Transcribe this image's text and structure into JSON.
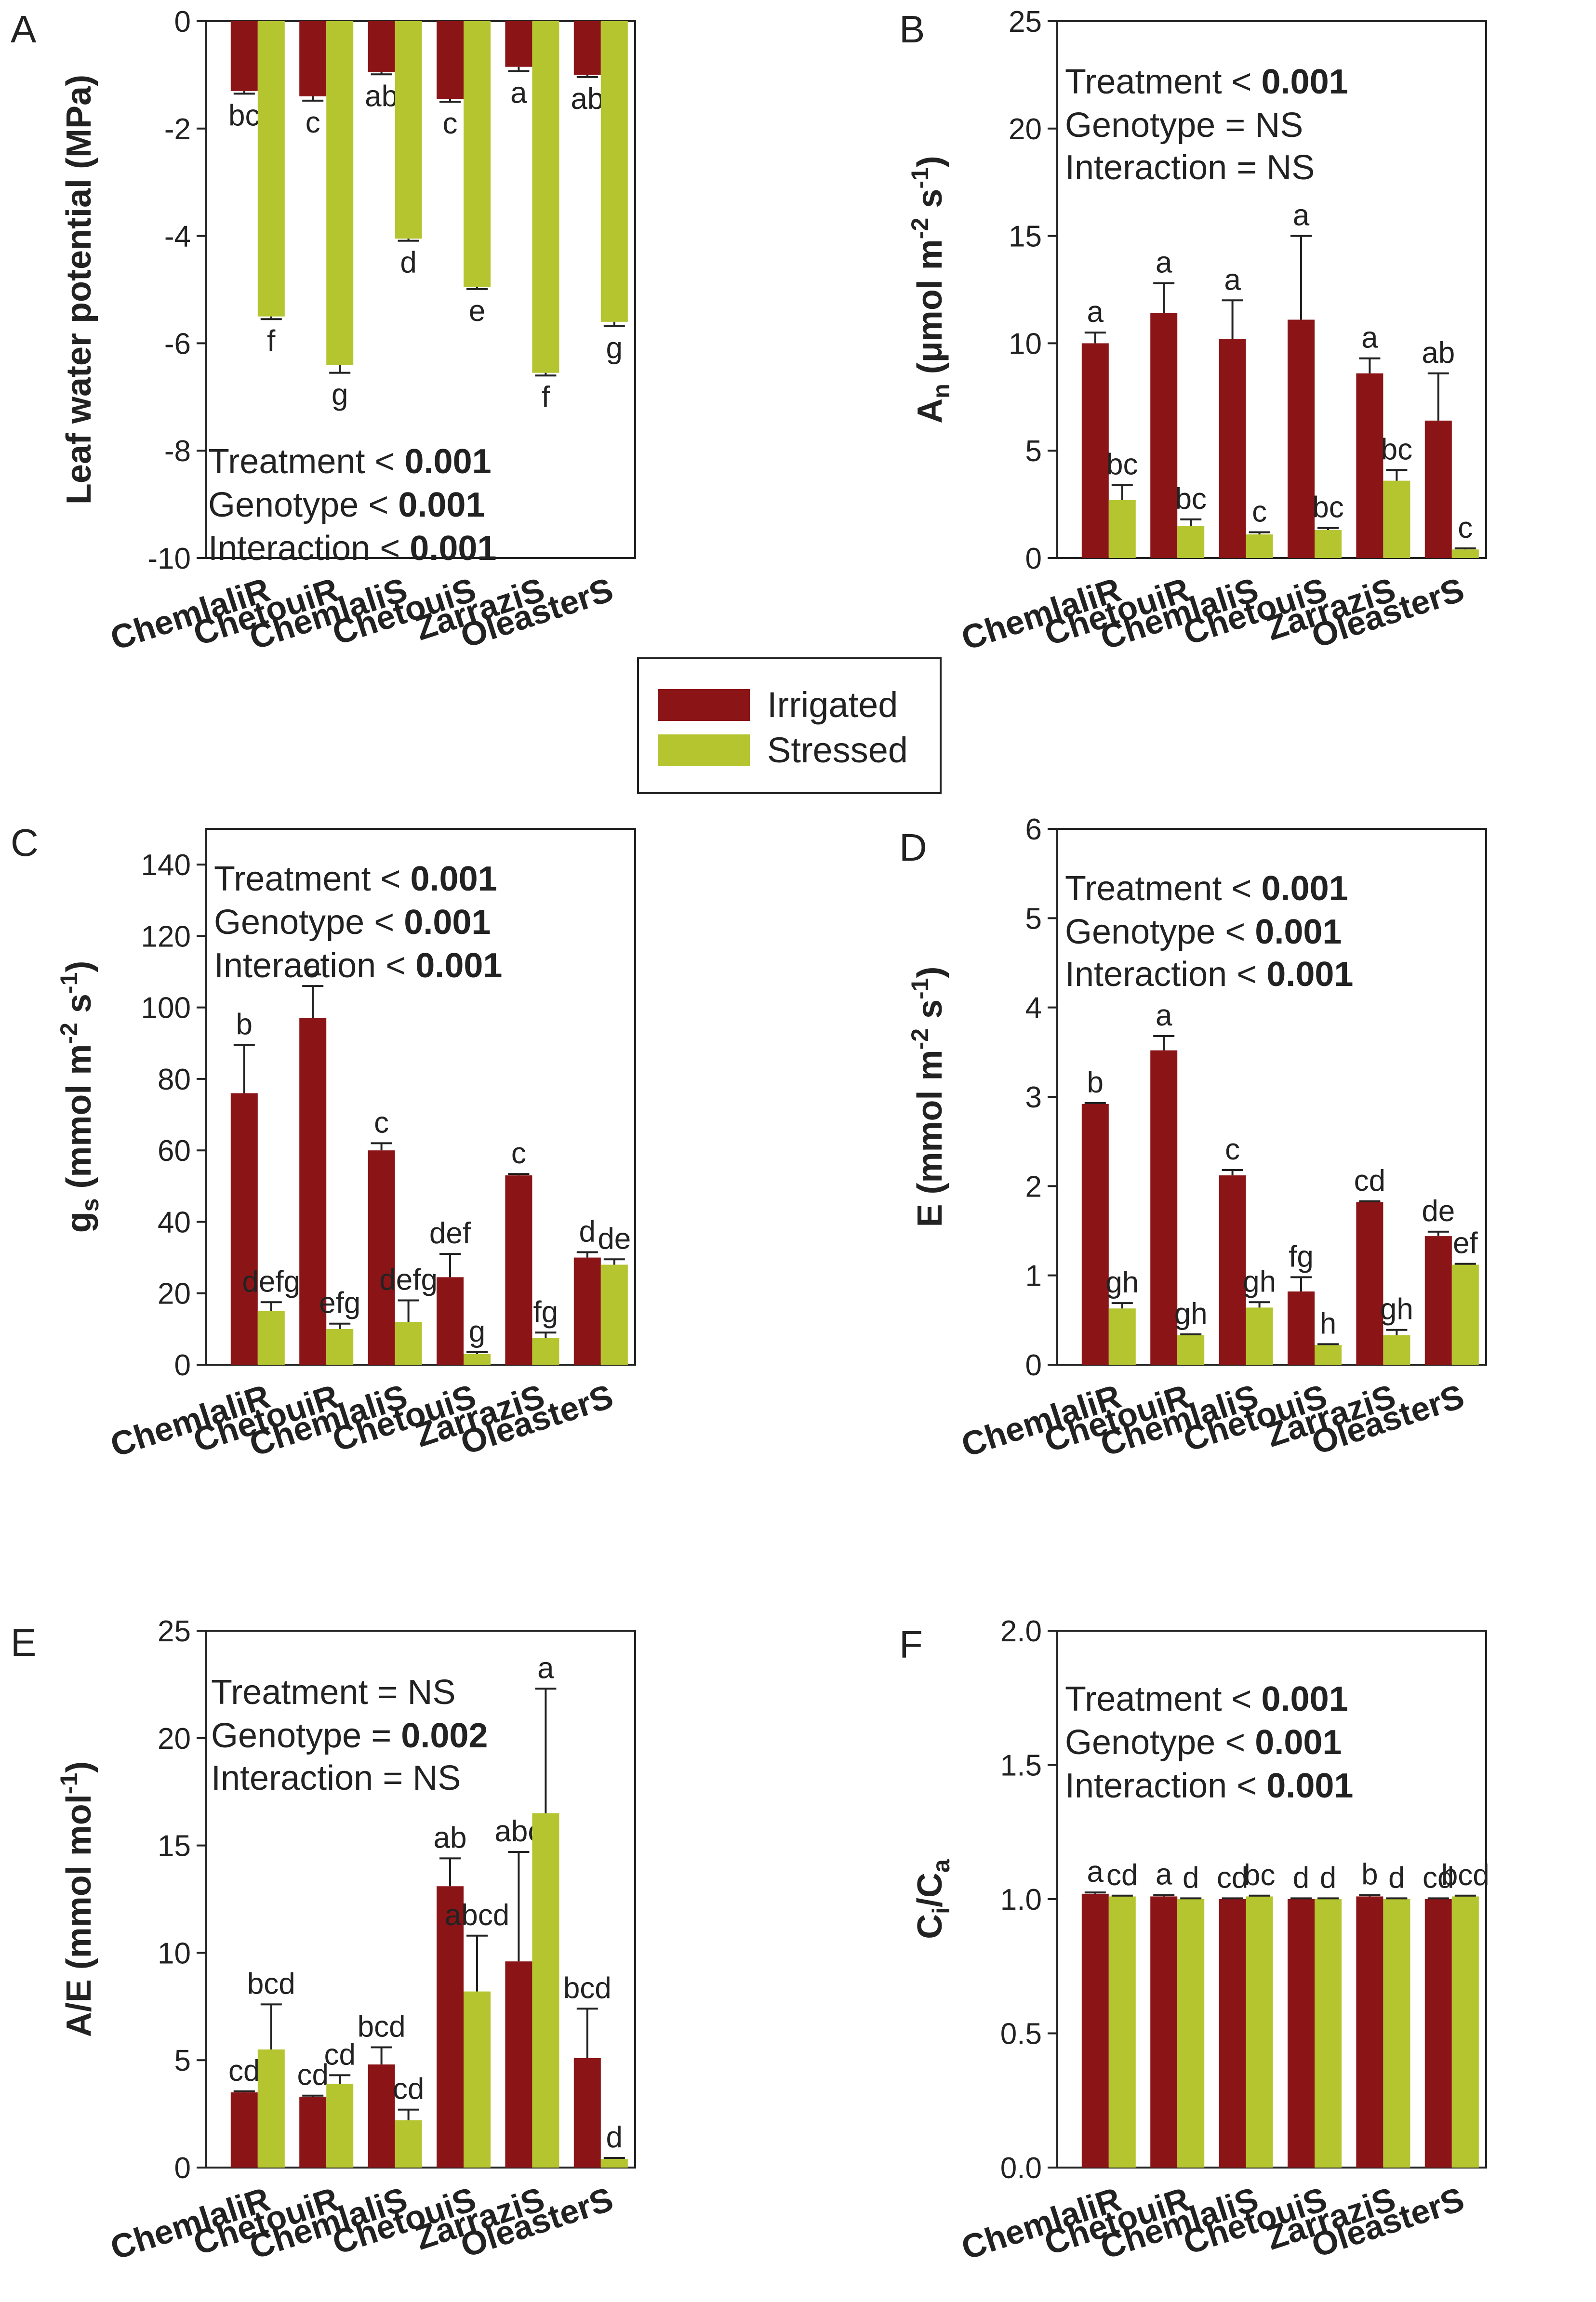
{
  "legend": {
    "irrigated_label": "Irrigated",
    "stressed_label": "Stressed",
    "irrigated_color": "#8b1416",
    "stressed_color": "#b5c530"
  },
  "chart_data": [
    {
      "panel": "A",
      "type": "bar",
      "ylabel": "Leaf water potential (MPa)",
      "ylim": [
        -10,
        0
      ],
      "yticks": [
        0,
        -2,
        -4,
        -6,
        -8,
        -10
      ],
      "yticklabels": [
        "0",
        "-2",
        "-4",
        "-6",
        "-8",
        "-10"
      ],
      "categories": [
        "ChemlaliR",
        "ChetouiR",
        "ChemlaliS",
        "ChetouiS",
        "ZarraziS",
        "OleasterS"
      ],
      "series": [
        {
          "name": "Irrigated",
          "values": [
            -1.3,
            -1.4,
            -0.95,
            -1.45,
            -0.85,
            -1.0
          ],
          "errors": [
            0.05,
            0.08,
            0.04,
            0.05,
            0.08,
            0.04
          ],
          "letters": [
            "bc",
            "c",
            "ab",
            "c",
            "a",
            "ab"
          ]
        },
        {
          "name": "Stressed",
          "values": [
            -5.5,
            -6.4,
            -4.05,
            -4.95,
            -6.55,
            -5.6
          ],
          "errors": [
            0.05,
            0.15,
            0.04,
            0.04,
            0.05,
            0.08
          ],
          "letters": [
            "f",
            "g",
            "d",
            "e",
            "f",
            "g"
          ]
        }
      ],
      "stats": [
        {
          "pre": "Treatment < ",
          "val": "0.001",
          "bold": true
        },
        {
          "pre": "Genotype < ",
          "val": "0.001",
          "bold": true
        },
        {
          "pre": "Interaction < ",
          "val": "0.001",
          "bold": true
        }
      ]
    },
    {
      "panel": "B",
      "type": "bar",
      "ylabel_main": "A",
      "ylabel_sub": "n",
      "ylabel_rest": " (μmol m",
      "ylabel_sup1": "-2",
      "ylabel_mid": " s",
      "ylabel_sup2": "-1",
      "ylabel_end": ")",
      "ylim": [
        0,
        25
      ],
      "yticks": [
        0,
        5,
        10,
        15,
        20,
        25
      ],
      "yticklabels": [
        "0",
        "5",
        "10",
        "15",
        "20",
        "25"
      ],
      "categories": [
        "ChemlaliR",
        "ChetouiR",
        "ChemlaliS",
        "ChetouiS",
        "ZarraziS",
        "OleasterS"
      ],
      "series": [
        {
          "name": "Irrigated",
          "values": [
            10.0,
            11.4,
            10.2,
            11.1,
            8.6,
            6.4
          ],
          "errors": [
            0.5,
            1.4,
            1.8,
            3.9,
            0.7,
            2.2
          ],
          "letters": [
            "a",
            "a",
            "a",
            "a",
            "a",
            "ab"
          ]
        },
        {
          "name": "Stressed",
          "values": [
            2.7,
            1.5,
            1.1,
            1.3,
            3.6,
            0.4
          ],
          "errors": [
            0.7,
            0.3,
            0.1,
            0.1,
            0.5,
            0.05
          ],
          "letters": [
            "bc",
            "bc",
            "c",
            "bc",
            "bc",
            "c"
          ]
        }
      ],
      "stats": [
        {
          "pre": "Treatment < ",
          "val": "0.001",
          "bold": true
        },
        {
          "pre": "Genotype = ",
          "val": "NS",
          "bold": false
        },
        {
          "pre": "Interaction = ",
          "val": "NS",
          "bold": false
        }
      ]
    },
    {
      "panel": "C",
      "type": "bar",
      "ylabel_main": "g",
      "ylabel_sub": "s",
      "ylabel_rest": " (mmol m",
      "ylabel_sup1": "-2",
      "ylabel_mid": " s",
      "ylabel_sup2": "-1",
      "ylabel_end": ")",
      "ylim": [
        0,
        150
      ],
      "yticks": [
        0,
        20,
        40,
        60,
        80,
        100,
        120,
        140
      ],
      "yticklabels": [
        "0",
        "20",
        "40",
        "60",
        "80",
        "100",
        "120",
        "140"
      ],
      "categories": [
        "ChemlaliR",
        "ChetouiR",
        "ChemlaliS",
        "ChetouiS",
        "ZarraziS",
        "OleasterS"
      ],
      "series": [
        {
          "name": "Irrigated",
          "values": [
            76,
            97,
            60,
            24.5,
            53,
            30
          ],
          "errors": [
            13.5,
            9,
            2,
            6.5,
            0.4,
            1.5
          ],
          "letters": [
            "b",
            "a",
            "c",
            "def",
            "c",
            "d"
          ]
        },
        {
          "name": "Stressed",
          "values": [
            15,
            10,
            12,
            3,
            7.5,
            28
          ],
          "errors": [
            2.5,
            1.5,
            6,
            0.5,
            1.5,
            1.5
          ],
          "letters": [
            "defg",
            "efg",
            "defg",
            "g",
            "fg",
            "de"
          ]
        }
      ],
      "stats": [
        {
          "pre": "Treatment < ",
          "val": "0.001",
          "bold": true
        },
        {
          "pre": "Genotype < ",
          "val": "0.001",
          "bold": true
        },
        {
          "pre": "Interaction < ",
          "val": "0.001",
          "bold": true
        }
      ]
    },
    {
      "panel": "D",
      "type": "bar",
      "ylabel_main": "E",
      "ylabel_sub": "",
      "ylabel_rest": " (mmol m",
      "ylabel_sup1": "-2",
      "ylabel_mid": " s",
      "ylabel_sup2": "-1",
      "ylabel_end": ")",
      "ylim": [
        0,
        6
      ],
      "yticks": [
        0,
        1,
        2,
        3,
        4,
        5,
        6
      ],
      "yticklabels": [
        "0",
        "1",
        "2",
        "3",
        "4",
        "5",
        "6"
      ],
      "categories": [
        "ChemlaliR",
        "ChetouiR",
        "ChemlaliS",
        "ChetouiS",
        "ZarraziS",
        "OleasterS"
      ],
      "series": [
        {
          "name": "Irrigated",
          "values": [
            2.92,
            3.52,
            2.12,
            0.82,
            1.82,
            1.44
          ],
          "errors": [
            0.01,
            0.16,
            0.06,
            0.16,
            0.01,
            0.05
          ],
          "letters": [
            "b",
            "a",
            "c",
            "fg",
            "cd",
            "de"
          ]
        },
        {
          "name": "Stressed",
          "values": [
            0.63,
            0.33,
            0.64,
            0.22,
            0.33,
            1.12
          ],
          "errors": [
            0.06,
            0.01,
            0.06,
            0.01,
            0.06,
            0.01
          ],
          "letters": [
            "gh",
            "gh",
            "gh",
            "h",
            "gh",
            "ef"
          ]
        }
      ],
      "stats": [
        {
          "pre": "Treatment < ",
          "val": "0.001",
          "bold": true
        },
        {
          "pre": "Genotype < ",
          "val": "0.001",
          "bold": true
        },
        {
          "pre": "Interaction < ",
          "val": "0.001",
          "bold": true
        }
      ]
    },
    {
      "panel": "E",
      "type": "bar",
      "ylabel_main": "A/E",
      "ylabel_sub": "",
      "ylabel_rest": " (mmol mol",
      "ylabel_sup1": "-1",
      "ylabel_mid": "",
      "ylabel_sup2": "",
      "ylabel_end": ")",
      "ylim": [
        0,
        25
      ],
      "yticks": [
        0,
        5,
        10,
        15,
        20,
        25
      ],
      "yticklabels": [
        "0",
        "5",
        "10",
        "15",
        "20",
        "25"
      ],
      "categories": [
        "ChemlaliR",
        "ChetouiR",
        "ChemlaliS",
        "ChetouiS",
        "ZarraziS",
        "OleasterS"
      ],
      "series": [
        {
          "name": "Irrigated",
          "values": [
            3.5,
            3.3,
            4.8,
            13.1,
            9.6,
            5.1
          ],
          "errors": [
            0.05,
            0.05,
            0.8,
            1.3,
            5.1,
            2.3
          ],
          "letters": [
            "cd",
            "cd",
            "bcd",
            "ab",
            "abc",
            "bcd"
          ]
        },
        {
          "name": "Stressed",
          "values": [
            5.5,
            3.9,
            2.2,
            8.2,
            16.5,
            0.4
          ],
          "errors": [
            2.1,
            0.4,
            0.5,
            2.6,
            5.8,
            0.05
          ],
          "letters": [
            "bcd",
            "cd",
            "cd",
            "abcd",
            "a",
            "d"
          ]
        }
      ],
      "stats": [
        {
          "pre": "Treatment = ",
          "val": "NS",
          "bold": false
        },
        {
          "pre": "Genotype = ",
          "val": "0.002",
          "bold": true
        },
        {
          "pre": "Interaction = ",
          "val": "NS",
          "bold": false
        }
      ]
    },
    {
      "panel": "F",
      "type": "bar",
      "ylabel_main": "C",
      "ylabel_sub": "i",
      "ylabel_rest": "/C",
      "ylabel_sup1": "",
      "ylabel_mid": "",
      "ylabel_sup2": "",
      "ylabel_end": "",
      "ylabel_sub2": "a",
      "ylim": [
        0,
        2.0
      ],
      "yticks": [
        0,
        0.5,
        1.0,
        1.5,
        2.0
      ],
      "yticklabels": [
        "0.0",
        "0.5",
        "1.0",
        "1.5",
        "2.0"
      ],
      "categories": [
        "ChemlaliR",
        "ChetouiR",
        "ChemlaliS",
        "ChetouiS",
        "ZarraziS",
        "OleasterS"
      ],
      "series": [
        {
          "name": "Irrigated",
          "values": [
            1.02,
            1.01,
            1.0,
            1.0,
            1.01,
            1.0
          ],
          "errors": [
            0.005,
            0.005,
            0.003,
            0.003,
            0.005,
            0.003
          ],
          "letters": [
            "a",
            "a",
            "cd",
            "d",
            "b",
            "cd"
          ]
        },
        {
          "name": "Stressed",
          "values": [
            1.01,
            1.0,
            1.01,
            1.0,
            1.0,
            1.01
          ],
          "errors": [
            0.003,
            0.003,
            0.003,
            0.003,
            0.003,
            0.003
          ],
          "letters": [
            "cd",
            "d",
            "bc",
            "d",
            "d",
            "bcd"
          ]
        }
      ],
      "stats": [
        {
          "pre": "Treatment < ",
          "val": "0.001",
          "bold": true
        },
        {
          "pre": "Genotype < ",
          "val": "0.001",
          "bold": true
        },
        {
          "pre": "Interaction < ",
          "val": "0.001",
          "bold": true
        }
      ]
    }
  ]
}
